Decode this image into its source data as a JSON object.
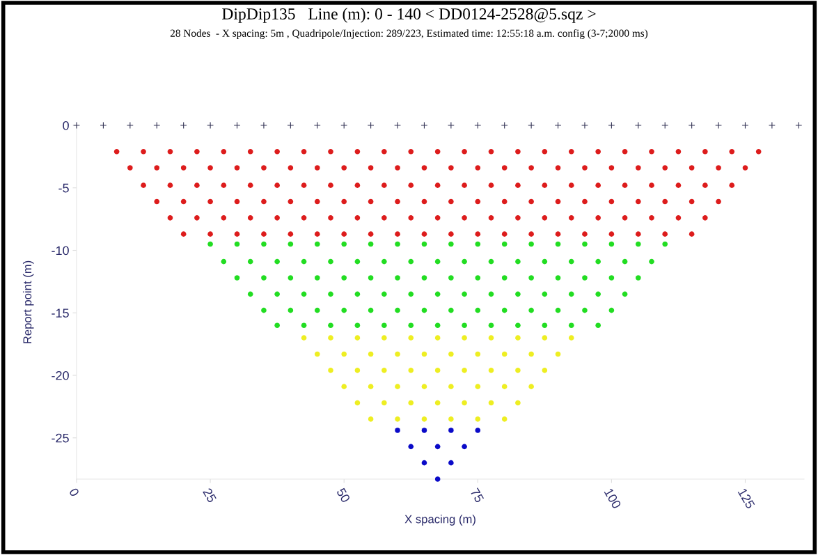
{
  "chart_data": {
    "type": "scatter",
    "title": "DipDip135   Line (m): 0 - 140 < DD0124-2528@5.sqz >",
    "subtitle": "28 Nodes  - X spacing: 5m , Quadripole/Injection: 289/223, Estimated time: 12:55:18 a.m. config (3-7;2000 ms)",
    "xlabel": "X spacing (m)",
    "ylabel": "Report point (m)",
    "xlim": [
      0,
      136
    ],
    "xticks": [
      0,
      25,
      50,
      75,
      100,
      125
    ],
    "ylim": [
      -28.3,
      0
    ],
    "yticks": [
      0,
      -5,
      -10,
      -15,
      -20,
      -25
    ],
    "grid": false,
    "legend": false,
    "series": [
      {
        "color": "#333355",
        "marker": "cross",
        "x": [
          0,
          5,
          10,
          15,
          20,
          25,
          30,
          35,
          40,
          45,
          50,
          55,
          60,
          65,
          70,
          75,
          80,
          85,
          90,
          95,
          100,
          105,
          110,
          115,
          120,
          125,
          130,
          135
        ],
        "values": [
          0,
          0,
          0,
          0,
          0,
          0,
          0,
          0,
          0,
          0,
          0,
          0,
          0,
          0,
          0,
          0,
          0,
          0,
          0,
          0,
          0,
          0,
          0,
          0,
          0,
          0,
          0,
          0
        ]
      },
      {
        "color": "#dd1c1c",
        "marker": "circle",
        "x": [
          7.5,
          12.5,
          17.5,
          22.5,
          27.5,
          32.5,
          37.5,
          42.5,
          47.5,
          52.5,
          57.5,
          62.5,
          67.5,
          72.5,
          77.5,
          82.5,
          87.5,
          92.5,
          97.5,
          102.5,
          107.5,
          112.5,
          117.5,
          122.5,
          127.5,
          10,
          15,
          20,
          25,
          30,
          35,
          40,
          45,
          50,
          55,
          60,
          65,
          70,
          75,
          80,
          85,
          90,
          95,
          100,
          105,
          110,
          115,
          120,
          125,
          12.5,
          17.5,
          22.5,
          27.5,
          32.5,
          37.5,
          42.5,
          47.5,
          52.5,
          57.5,
          62.5,
          67.5,
          72.5,
          77.5,
          82.5,
          87.5,
          92.5,
          97.5,
          102.5,
          107.5,
          112.5,
          117.5,
          122.5,
          15,
          20,
          25,
          30,
          35,
          40,
          45,
          50,
          55,
          60,
          65,
          70,
          75,
          80,
          85,
          90,
          95,
          100,
          105,
          110,
          115,
          120,
          17.5,
          22.5,
          27.5,
          32.5,
          37.5,
          42.5,
          47.5,
          52.5,
          57.5,
          62.5,
          67.5,
          72.5,
          77.5,
          82.5,
          87.5,
          92.5,
          97.5,
          102.5,
          107.5,
          112.5,
          117.5,
          20,
          25,
          30,
          35,
          40,
          45,
          50,
          55,
          60,
          65,
          70,
          75,
          80,
          85,
          90,
          95,
          100,
          105,
          110,
          115
        ],
        "values": [
          -2.1,
          -2.1,
          -2.1,
          -2.1,
          -2.1,
          -2.1,
          -2.1,
          -2.1,
          -2.1,
          -2.1,
          -2.1,
          -2.1,
          -2.1,
          -2.1,
          -2.1,
          -2.1,
          -2.1,
          -2.1,
          -2.1,
          -2.1,
          -2.1,
          -2.1,
          -2.1,
          -2.1,
          -2.1,
          -3.4,
          -3.4,
          -3.4,
          -3.4,
          -3.4,
          -3.4,
          -3.4,
          -3.4,
          -3.4,
          -3.4,
          -3.4,
          -3.4,
          -3.4,
          -3.4,
          -3.4,
          -3.4,
          -3.4,
          -3.4,
          -3.4,
          -3.4,
          -3.4,
          -3.4,
          -3.4,
          -3.4,
          -4.8,
          -4.8,
          -4.8,
          -4.8,
          -4.8,
          -4.8,
          -4.8,
          -4.8,
          -4.8,
          -4.8,
          -4.8,
          -4.8,
          -4.8,
          -4.8,
          -4.8,
          -4.8,
          -4.8,
          -4.8,
          -4.8,
          -4.8,
          -4.8,
          -4.8,
          -4.8,
          -6.1,
          -6.1,
          -6.1,
          -6.1,
          -6.1,
          -6.1,
          -6.1,
          -6.1,
          -6.1,
          -6.1,
          -6.1,
          -6.1,
          -6.1,
          -6.1,
          -6.1,
          -6.1,
          -6.1,
          -6.1,
          -6.1,
          -6.1,
          -6.1,
          -6.1,
          -7.4,
          -7.4,
          -7.4,
          -7.4,
          -7.4,
          -7.4,
          -7.4,
          -7.4,
          -7.4,
          -7.4,
          -7.4,
          -7.4,
          -7.4,
          -7.4,
          -7.4,
          -7.4,
          -7.4,
          -7.4,
          -7.4,
          -7.4,
          -7.4,
          -8.7,
          -8.7,
          -8.7,
          -8.7,
          -8.7,
          -8.7,
          -8.7,
          -8.7,
          -8.7,
          -8.7,
          -8.7,
          -8.7,
          -8.7,
          -8.7,
          -8.7,
          -8.7,
          -8.7,
          -8.7,
          -8.7,
          -8.7
        ]
      },
      {
        "color": "#22dd22",
        "marker": "circle",
        "x": [
          25,
          30,
          35,
          40,
          45,
          50,
          55,
          60,
          65,
          70,
          75,
          80,
          85,
          90,
          95,
          100,
          105,
          110,
          27.5,
          32.5,
          37.5,
          42.5,
          47.5,
          52.5,
          57.5,
          62.5,
          67.5,
          72.5,
          77.5,
          82.5,
          87.5,
          92.5,
          97.5,
          102.5,
          107.5,
          30,
          35,
          40,
          45,
          50,
          55,
          60,
          65,
          70,
          75,
          80,
          85,
          90,
          95,
          100,
          105,
          32.5,
          37.5,
          42.5,
          47.5,
          52.5,
          57.5,
          62.5,
          67.5,
          72.5,
          77.5,
          82.5,
          87.5,
          92.5,
          97.5,
          102.5,
          35,
          40,
          45,
          50,
          55,
          60,
          65,
          70,
          75,
          80,
          85,
          90,
          95,
          100,
          37.5,
          42.5,
          47.5,
          52.5,
          57.5,
          62.5,
          67.5,
          72.5,
          77.5,
          82.5,
          87.5,
          92.5,
          97.5
        ],
        "values": [
          -9.5,
          -9.5,
          -9.5,
          -9.5,
          -9.5,
          -9.5,
          -9.5,
          -9.5,
          -9.5,
          -9.5,
          -9.5,
          -9.5,
          -9.5,
          -9.5,
          -9.5,
          -9.5,
          -9.5,
          -9.5,
          -10.9,
          -10.9,
          -10.9,
          -10.9,
          -10.9,
          -10.9,
          -10.9,
          -10.9,
          -10.9,
          -10.9,
          -10.9,
          -10.9,
          -10.9,
          -10.9,
          -10.9,
          -10.9,
          -10.9,
          -12.2,
          -12.2,
          -12.2,
          -12.2,
          -12.2,
          -12.2,
          -12.2,
          -12.2,
          -12.2,
          -12.2,
          -12.2,
          -12.2,
          -12.2,
          -12.2,
          -12.2,
          -12.2,
          -13.5,
          -13.5,
          -13.5,
          -13.5,
          -13.5,
          -13.5,
          -13.5,
          -13.5,
          -13.5,
          -13.5,
          -13.5,
          -13.5,
          -13.5,
          -13.5,
          -13.5,
          -14.8,
          -14.8,
          -14.8,
          -14.8,
          -14.8,
          -14.8,
          -14.8,
          -14.8,
          -14.8,
          -14.8,
          -14.8,
          -14.8,
          -14.8,
          -14.8,
          -16,
          -16,
          -16,
          -16,
          -16,
          -16,
          -16,
          -16,
          -16,
          -16,
          -16,
          -16,
          -16
        ]
      },
      {
        "color": "#eeee22",
        "marker": "circle",
        "x": [
          42.5,
          47.5,
          52.5,
          57.5,
          62.5,
          67.5,
          72.5,
          77.5,
          82.5,
          87.5,
          92.5,
          45,
          50,
          55,
          60,
          65,
          70,
          75,
          80,
          85,
          90,
          47.5,
          52.5,
          57.5,
          62.5,
          67.5,
          72.5,
          77.5,
          82.5,
          87.5,
          50,
          55,
          60,
          65,
          70,
          75,
          80,
          85,
          52.5,
          57.5,
          62.5,
          67.5,
          72.5,
          77.5,
          82.5,
          55,
          60,
          65,
          70,
          75,
          80
        ],
        "values": [
          -17,
          -17,
          -17,
          -17,
          -17,
          -17,
          -17,
          -17,
          -17,
          -17,
          -17,
          -18.3,
          -18.3,
          -18.3,
          -18.3,
          -18.3,
          -18.3,
          -18.3,
          -18.3,
          -18.3,
          -18.3,
          -19.6,
          -19.6,
          -19.6,
          -19.6,
          -19.6,
          -19.6,
          -19.6,
          -19.6,
          -19.6,
          -20.9,
          -20.9,
          -20.9,
          -20.9,
          -20.9,
          -20.9,
          -20.9,
          -20.9,
          -22.2,
          -22.2,
          -22.2,
          -22.2,
          -22.2,
          -22.2,
          -22.2,
          -23.5,
          -23.5,
          -23.5,
          -23.5,
          -23.5,
          -23.5
        ]
      },
      {
        "color": "#0a0ac8",
        "marker": "circle",
        "x": [
          60,
          65,
          70,
          75,
          62.5,
          67.5,
          72.5,
          65,
          70,
          67.5
        ],
        "values": [
          -24.4,
          -24.4,
          -24.4,
          -24.4,
          -25.7,
          -25.7,
          -25.7,
          -27,
          -27,
          -28.3
        ]
      }
    ]
  }
}
